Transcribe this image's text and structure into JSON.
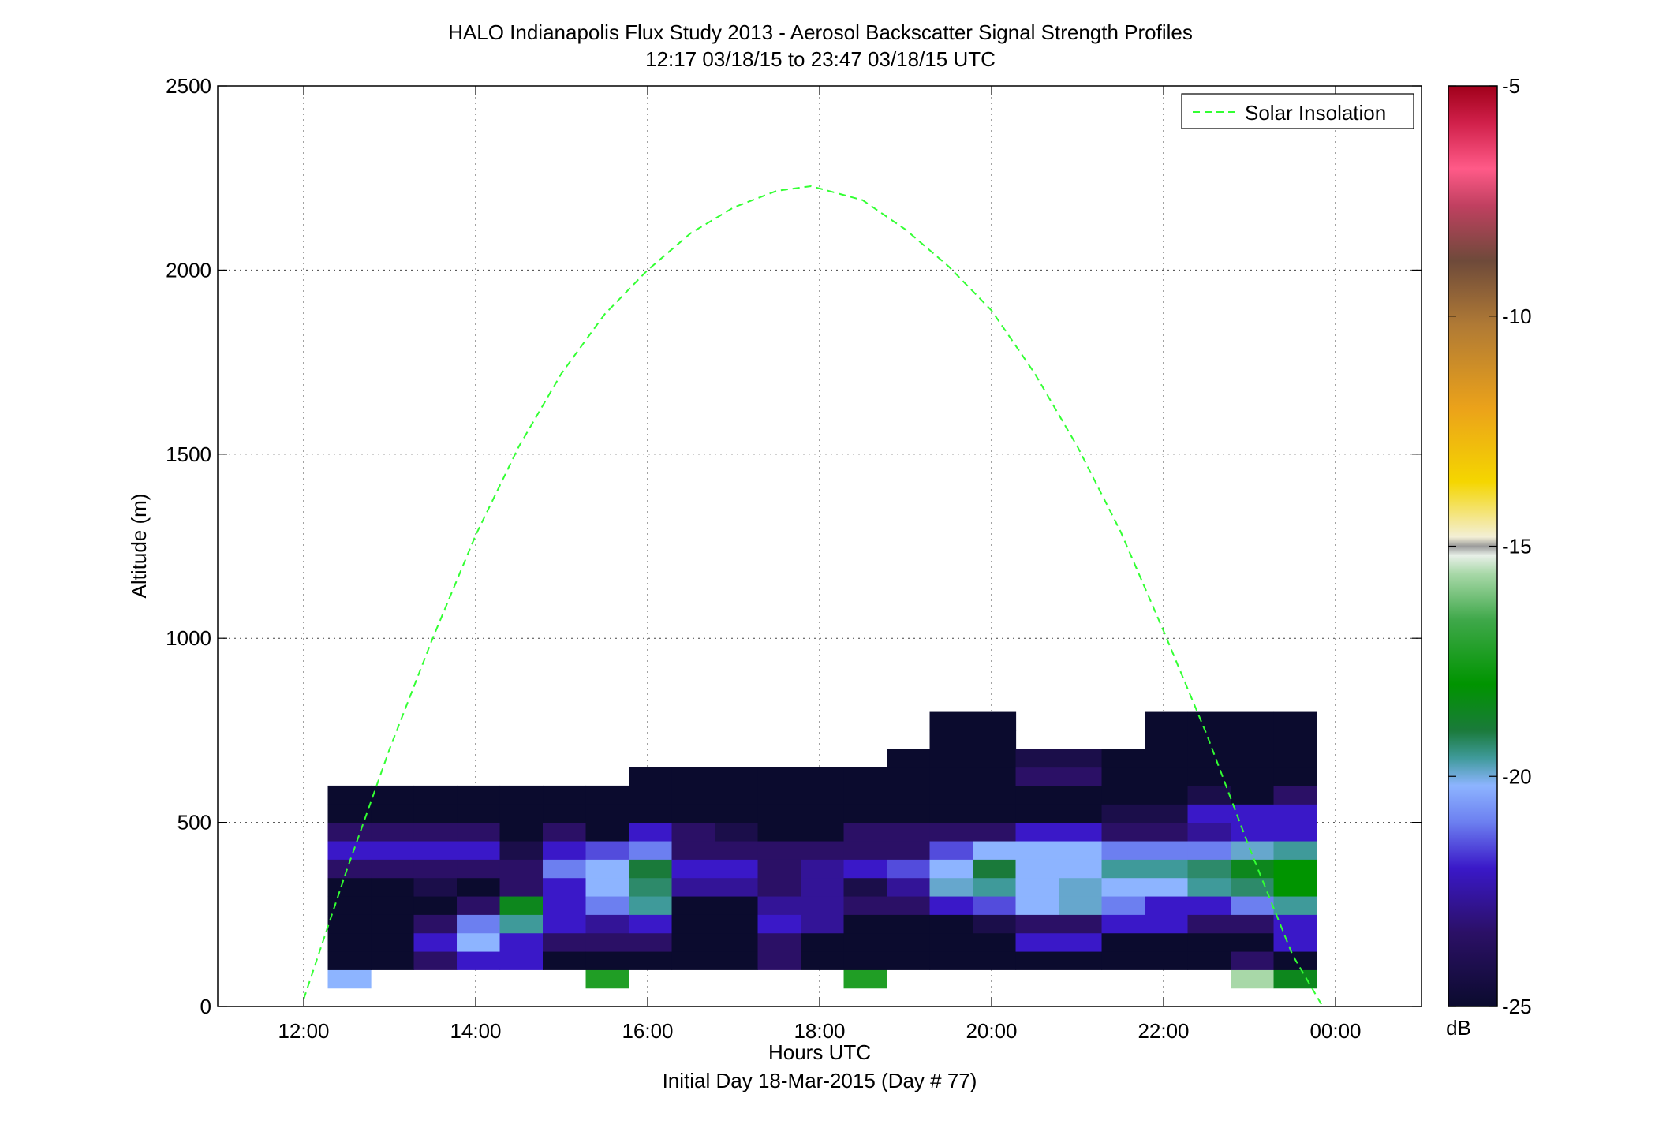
{
  "chart_data": {
    "type": "heatmap",
    "title": "HALO Indianapolis Flux Study 2013 - Aerosol Backscatter Signal Strength Profiles",
    "subtitle": "12:17 03/18/15 to 23:47 03/18/15  UTC",
    "xlabel": "Hours UTC",
    "xlabel2": "Initial Day 18-Mar-2015 (Day # 77)",
    "ylabel": "Altitude (m)",
    "xlim": [
      11.0,
      25.0
    ],
    "ylim": [
      0,
      2500
    ],
    "x_ticks": [
      12,
      14,
      16,
      18,
      20,
      22,
      24
    ],
    "x_tick_labels": [
      "12:00",
      "14:00",
      "16:00",
      "18:00",
      "20:00",
      "22:00",
      "00:00"
    ],
    "y_ticks": [
      0,
      500,
      1000,
      1500,
      2000,
      2500
    ],
    "y_tick_labels": [
      "0",
      "500",
      "1000",
      "1500",
      "2000",
      "2500"
    ],
    "grid": true,
    "legend": {
      "position": "top-right",
      "entries": [
        {
          "label": "Solar Insolation",
          "color": "#33ff33",
          "style": "dashed"
        }
      ]
    },
    "colorbar": {
      "label": "dB",
      "range": [
        -25,
        -5
      ],
      "ticks": [
        -5,
        -10,
        -15,
        -20,
        -25
      ],
      "tick_labels": [
        "-5",
        "-10",
        "-15",
        "-20",
        "-25"
      ]
    },
    "heatmap": {
      "time_start": 12.28,
      "time_step": 0.5,
      "altitude_bins": [
        [
          50,
          100
        ],
        [
          100,
          150
        ],
        [
          150,
          200
        ],
        [
          200,
          250
        ],
        [
          250,
          300
        ],
        [
          300,
          350
        ],
        [
          350,
          400
        ],
        [
          400,
          450
        ],
        [
          450,
          500
        ],
        [
          500,
          550
        ],
        [
          550,
          600
        ],
        [
          600,
          650
        ],
        [
          650,
          700
        ],
        [
          700,
          750
        ],
        [
          750,
          800
        ],
        [
          800,
          850
        ]
      ],
      "columns": [
        [
          -21.5,
          -25,
          -25,
          -25,
          -25,
          -25,
          -24,
          -23,
          -24,
          -25,
          -25,
          null,
          null,
          null,
          null,
          null
        ],
        [
          null,
          -25,
          -25,
          -25,
          -25,
          -25,
          -24,
          -23,
          -24,
          -25,
          -25,
          null,
          null,
          null,
          null,
          null
        ],
        [
          null,
          -24,
          -23,
          -24,
          -25,
          -24.5,
          -24,
          -23,
          -24,
          -25,
          -25,
          null,
          null,
          null,
          null,
          null
        ],
        [
          null,
          -23,
          -21.5,
          -22,
          -24,
          -25,
          -24,
          -23,
          -24,
          -25,
          -25,
          null,
          null,
          null,
          null,
          null
        ],
        [
          null,
          -23,
          -23,
          -20.5,
          -19,
          -24,
          -24,
          -24.5,
          -25,
          -25,
          -25,
          null,
          null,
          null,
          null,
          null
        ],
        [
          null,
          -25,
          -24,
          -23,
          -23,
          -23,
          -22,
          -23,
          -24,
          -25,
          -25,
          null,
          null,
          null,
          null,
          null
        ],
        [
          -18,
          -25,
          -24,
          -23.5,
          -22,
          -21.5,
          -21.5,
          -22.5,
          -25,
          -25,
          -25,
          null,
          null,
          null,
          null,
          null
        ],
        [
          null,
          -25,
          -24,
          -23,
          -20.5,
          -20,
          -19.5,
          -22,
          -23,
          -25,
          -25,
          -25,
          null,
          null,
          null,
          null
        ],
        [
          null,
          -25,
          -25,
          -25,
          -25,
          -23.5,
          -23,
          -24,
          -24,
          -25,
          -25,
          -25,
          null,
          null,
          null,
          null
        ],
        [
          null,
          -25,
          -25,
          -25,
          -25,
          -23.5,
          -23,
          -24,
          -24.5,
          -25,
          -25,
          -25,
          null,
          null,
          null,
          null
        ],
        [
          null,
          -24,
          -24,
          -23,
          -23.5,
          -24,
          -24,
          -24,
          -25,
          -25,
          -25,
          -25,
          null,
          null,
          null,
          null
        ],
        [
          null,
          -25,
          -25,
          -23.5,
          -23.5,
          -23.5,
          -23.5,
          -24,
          -25,
          -25,
          -25,
          -25,
          null,
          null,
          null,
          null
        ],
        [
          -18,
          -25,
          -25,
          -25,
          -24,
          -24.5,
          -23,
          -24,
          -24,
          -25,
          -25,
          -25,
          null,
          null,
          null,
          null
        ],
        [
          null,
          -25,
          -25,
          -25,
          -24,
          -23.5,
          -22.5,
          -24,
          -24,
          -25,
          -25,
          -25,
          -25,
          null,
          null,
          null
        ],
        [
          null,
          -25,
          -25,
          -25,
          -23,
          -21,
          -21.5,
          -22.5,
          -24,
          -25,
          -25,
          -25,
          -25,
          -25,
          -25,
          null
        ],
        [
          null,
          -25,
          -25,
          -24.5,
          -22.5,
          -20.5,
          -19.5,
          -21.5,
          -24,
          -25,
          -25,
          -25,
          -25,
          -25,
          -25,
          null
        ],
        [
          null,
          -25,
          -23,
          -24,
          -21.5,
          -21.5,
          -21.5,
          -21.5,
          -23,
          -25,
          -25,
          -24,
          -24.5,
          null,
          null,
          null
        ],
        [
          null,
          -25,
          -23,
          -24,
          -21,
          -21,
          -21.5,
          -21.5,
          -23,
          -25,
          -25,
          -24,
          -24.5,
          null,
          null,
          null
        ],
        [
          null,
          -25,
          -25,
          -23,
          -22,
          -21.5,
          -20.5,
          -22,
          -24,
          -24.5,
          -25,
          -25,
          -25,
          null,
          null,
          null
        ],
        [
          null,
          -25,
          -25,
          -23,
          -23,
          -21.5,
          -20.5,
          -22,
          -24,
          -24.5,
          -25,
          -25,
          -25,
          -25,
          -25,
          null
        ],
        [
          null,
          -25,
          -25,
          -24,
          -23,
          -20.5,
          -20,
          -22,
          -23.5,
          -23,
          -24.5,
          -25,
          -25,
          -25,
          -25,
          null
        ],
        [
          -16.5,
          -24,
          -25,
          -24,
          -22,
          -20,
          -19,
          -21,
          -23,
          -23,
          -25,
          -25,
          -25,
          -25,
          -25,
          null
        ],
        [
          -19,
          -25,
          -23,
          -23,
          -20.5,
          -18.5,
          -18.5,
          -20.5,
          -23,
          -23,
          -24,
          -25,
          -25,
          -25,
          -25,
          null
        ]
      ]
    },
    "solar_insolation": {
      "x": [
        12.0,
        12.5,
        13.0,
        13.5,
        14.0,
        14.5,
        15.0,
        15.5,
        16.0,
        16.5,
        17.0,
        17.5,
        17.9,
        18.5,
        19.0,
        19.5,
        20.0,
        20.5,
        21.0,
        21.5,
        22.0,
        22.5,
        23.0,
        23.5,
        23.85
      ],
      "y": [
        20,
        370,
        700,
        1000,
        1280,
        1520,
        1720,
        1880,
        2000,
        2100,
        2170,
        2215,
        2228,
        2190,
        2110,
        2010,
        1890,
        1720,
        1520,
        1290,
        1020,
        740,
        430,
        140,
        0
      ]
    }
  }
}
